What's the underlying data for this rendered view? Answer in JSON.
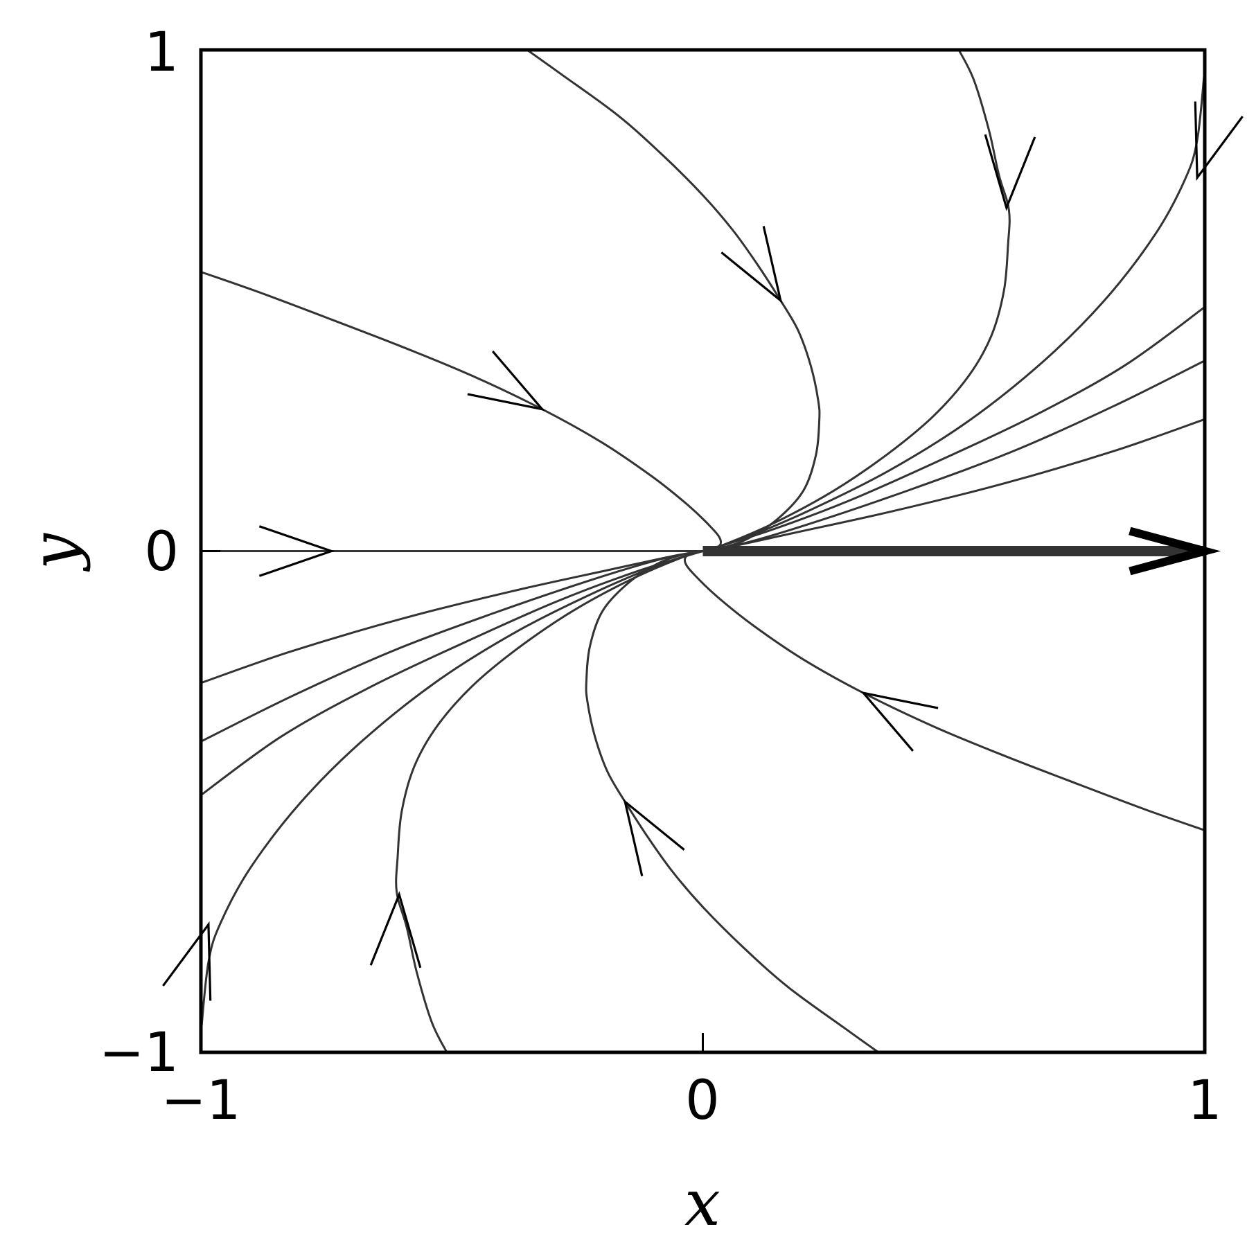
{
  "chart_data": {
    "type": "line",
    "title": "",
    "xlabel": "x",
    "ylabel": "y",
    "xlim": [
      -1,
      1
    ],
    "ylim": [
      -1,
      1
    ],
    "grid": false,
    "x_ticks": [
      {
        "value": -1,
        "label": "−1"
      },
      {
        "value": 0,
        "label": "0"
      },
      {
        "value": 1,
        "label": "1"
      }
    ],
    "y_ticks": [
      {
        "value": -1,
        "label": "−1"
      },
      {
        "value": 0,
        "label": "0"
      },
      {
        "value": 1,
        "label": "1"
      }
    ],
    "colors": {
      "curve": "#333333",
      "arrow": "#000000",
      "axes": "#000000"
    },
    "series": [
      {
        "points": [
          [
            -0.35,
            1.0
          ],
          [
            -0.28,
            0.95
          ],
          [
            -0.17,
            0.87
          ],
          [
            -0.08,
            0.79
          ],
          [
            0.0,
            0.71
          ],
          [
            0.06,
            0.64
          ],
          [
            0.11,
            0.57
          ],
          [
            0.155,
            0.5
          ],
          [
            0.19,
            0.44
          ],
          [
            0.215,
            0.37
          ],
          [
            0.23,
            0.3
          ],
          [
            0.232,
            0.26
          ],
          [
            0.225,
            0.19
          ],
          [
            0.2,
            0.12
          ],
          [
            0.15,
            0.065
          ],
          [
            0.09,
            0.025
          ],
          [
            0.04,
            0.007
          ],
          [
            0.0,
            0.0
          ]
        ],
        "arrows": [
          {
            "at": [
              0.155,
              0.5
            ],
            "dir": [
              0.53,
              -0.85
            ]
          }
        ]
      },
      {
        "points": [
          [
            -1.0,
            0.557
          ],
          [
            -0.88,
            0.515
          ],
          [
            -0.74,
            0.462
          ],
          [
            -0.6,
            0.408
          ],
          [
            -0.46,
            0.35
          ],
          [
            -0.32,
            0.283
          ],
          [
            -0.2,
            0.216
          ],
          [
            -0.1,
            0.148
          ],
          [
            -0.03,
            0.092
          ],
          [
            0.017,
            0.047
          ],
          [
            0.035,
            0.023
          ],
          [
            0.03,
            0.008
          ],
          [
            0.0,
            0.0
          ]
        ],
        "arrows": [
          {
            "at": [
              -0.32,
              0.283
            ],
            "dir": [
              0.85,
              -0.5
            ]
          }
        ]
      },
      {
        "points": [
          [
            -1.0,
            0.0
          ],
          [
            -0.55,
            0.0
          ],
          [
            0.0,
            0.0
          ]
        ],
        "arrows": [
          {
            "at": [
              -0.74,
              0.0
            ],
            "dir": [
              1,
              0
            ]
          }
        ]
      },
      {
        "points": [
          [
            0.51,
            1.0
          ],
          [
            0.54,
            0.94
          ],
          [
            0.57,
            0.84
          ],
          [
            0.59,
            0.75
          ],
          [
            0.61,
            0.68
          ],
          [
            0.608,
            0.61
          ],
          [
            0.6,
            0.52
          ],
          [
            0.575,
            0.43
          ],
          [
            0.53,
            0.35
          ],
          [
            0.46,
            0.27
          ],
          [
            0.37,
            0.195
          ],
          [
            0.26,
            0.12
          ],
          [
            0.14,
            0.055
          ],
          [
            0.04,
            0.012
          ],
          [
            0.0,
            0.0
          ]
        ],
        "arrows": [
          {
            "at": [
              0.605,
              0.685
            ],
            "dir": [
              -0.05,
              -1.0
            ]
          }
        ]
      },
      {
        "points": [
          [
            1.0,
            0.963
          ],
          [
            0.985,
            0.82
          ],
          [
            0.96,
            0.74
          ],
          [
            0.9,
            0.63
          ],
          [
            0.8,
            0.5
          ],
          [
            0.68,
            0.38
          ],
          [
            0.53,
            0.26
          ],
          [
            0.37,
            0.16
          ],
          [
            0.21,
            0.08
          ],
          [
            0.08,
            0.025
          ],
          [
            0.0,
            0.0
          ]
        ],
        "arrows": [
          {
            "at": [
              0.985,
              0.745
            ],
            "dir": [
              -0.3,
              -0.95
            ]
          }
        ]
      },
      {
        "points": [
          [
            1.0,
            0.487
          ],
          [
            0.84,
            0.37
          ],
          [
            0.66,
            0.27
          ],
          [
            0.47,
            0.18
          ],
          [
            0.29,
            0.1
          ],
          [
            0.13,
            0.04
          ],
          [
            0.0,
            0.0
          ]
        ],
        "arrows": []
      },
      {
        "points": [
          [
            1.0,
            0.38
          ],
          [
            0.82,
            0.29
          ],
          [
            0.62,
            0.2
          ],
          [
            0.42,
            0.125
          ],
          [
            0.23,
            0.06
          ],
          [
            0.08,
            0.015
          ],
          [
            0.0,
            0.0
          ]
        ],
        "arrows": []
      },
      {
        "points": [
          [
            1.0,
            0.263
          ],
          [
            0.82,
            0.2
          ],
          [
            0.6,
            0.135
          ],
          [
            0.38,
            0.08
          ],
          [
            0.18,
            0.036
          ],
          [
            0.06,
            0.01
          ],
          [
            0.0,
            0.0
          ]
        ],
        "arrows": []
      },
      {
        "points": [
          [
            0.35,
            -1.0
          ],
          [
            0.28,
            -0.95
          ],
          [
            0.17,
            -0.87
          ],
          [
            0.08,
            -0.79
          ],
          [
            0.0,
            -0.71
          ],
          [
            -0.06,
            -0.64
          ],
          [
            -0.11,
            -0.57
          ],
          [
            -0.155,
            -0.5
          ],
          [
            -0.19,
            -0.44
          ],
          [
            -0.215,
            -0.37
          ],
          [
            -0.23,
            -0.3
          ],
          [
            -0.232,
            -0.26
          ],
          [
            -0.225,
            -0.19
          ],
          [
            -0.2,
            -0.12
          ],
          [
            -0.15,
            -0.065
          ],
          [
            -0.09,
            -0.025
          ],
          [
            -0.04,
            -0.007
          ],
          [
            0.0,
            0.0
          ]
        ],
        "arrows": [
          {
            "at": [
              -0.155,
              -0.5
            ],
            "dir": [
              -0.53,
              0.85
            ]
          }
        ]
      },
      {
        "points": [
          [
            1.0,
            -0.557
          ],
          [
            0.88,
            -0.515
          ],
          [
            0.74,
            -0.462
          ],
          [
            0.6,
            -0.408
          ],
          [
            0.46,
            -0.35
          ],
          [
            0.32,
            -0.283
          ],
          [
            0.2,
            -0.216
          ],
          [
            0.1,
            -0.148
          ],
          [
            0.03,
            -0.092
          ],
          [
            -0.017,
            -0.047
          ],
          [
            -0.035,
            -0.023
          ],
          [
            -0.03,
            -0.008
          ],
          [
            0.0,
            0.0
          ]
        ],
        "arrows": [
          {
            "at": [
              0.32,
              -0.283
            ],
            "dir": [
              -0.85,
              0.5
            ]
          }
        ]
      },
      {
        "points": [
          [
            -0.51,
            -1.0
          ],
          [
            -0.54,
            -0.94
          ],
          [
            -0.57,
            -0.84
          ],
          [
            -0.59,
            -0.75
          ],
          [
            -0.61,
            -0.68
          ],
          [
            -0.608,
            -0.61
          ],
          [
            -0.6,
            -0.52
          ],
          [
            -0.575,
            -0.43
          ],
          [
            -0.53,
            -0.35
          ],
          [
            -0.46,
            -0.27
          ],
          [
            -0.37,
            -0.195
          ],
          [
            -0.26,
            -0.12
          ],
          [
            -0.14,
            -0.055
          ],
          [
            -0.04,
            -0.012
          ],
          [
            0.0,
            0.0
          ]
        ],
        "arrows": [
          {
            "at": [
              -0.605,
              -0.685
            ],
            "dir": [
              0.05,
              1.0
            ]
          }
        ]
      },
      {
        "points": [
          [
            -1.0,
            -0.963
          ],
          [
            -0.985,
            -0.82
          ],
          [
            -0.96,
            -0.74
          ],
          [
            -0.9,
            -0.63
          ],
          [
            -0.8,
            -0.5
          ],
          [
            -0.68,
            -0.38
          ],
          [
            -0.53,
            -0.26
          ],
          [
            -0.37,
            -0.16
          ],
          [
            -0.21,
            -0.08
          ],
          [
            -0.08,
            -0.025
          ],
          [
            0.0,
            0.0
          ]
        ],
        "arrows": [
          {
            "at": [
              -0.985,
              -0.745
            ],
            "dir": [
              0.3,
              0.95
            ]
          }
        ]
      },
      {
        "points": [
          [
            -1.0,
            -0.487
          ],
          [
            -0.84,
            -0.37
          ],
          [
            -0.66,
            -0.27
          ],
          [
            -0.47,
            -0.18
          ],
          [
            -0.29,
            -0.1
          ],
          [
            -0.13,
            -0.04
          ],
          [
            0.0,
            0.0
          ]
        ],
        "arrows": []
      },
      {
        "points": [
          [
            -1.0,
            -0.38
          ],
          [
            -0.82,
            -0.29
          ],
          [
            -0.62,
            -0.2
          ],
          [
            -0.42,
            -0.125
          ],
          [
            -0.23,
            -0.06
          ],
          [
            -0.08,
            -0.015
          ],
          [
            0.0,
            0.0
          ]
        ],
        "arrows": []
      },
      {
        "points": [
          [
            -1.0,
            -0.263
          ],
          [
            -0.82,
            -0.2
          ],
          [
            -0.6,
            -0.135
          ],
          [
            -0.38,
            -0.08
          ],
          [
            -0.18,
            -0.036
          ],
          [
            -0.06,
            -0.01
          ],
          [
            0.0,
            0.0
          ]
        ],
        "arrows": []
      }
    ],
    "highlight": {
      "points": [
        [
          0.0,
          0.0
        ],
        [
          1.0,
          0.0
        ]
      ],
      "arrow": {
        "at": [
          1.0,
          0.0
        ],
        "dir": [
          1,
          0
        ]
      }
    }
  }
}
